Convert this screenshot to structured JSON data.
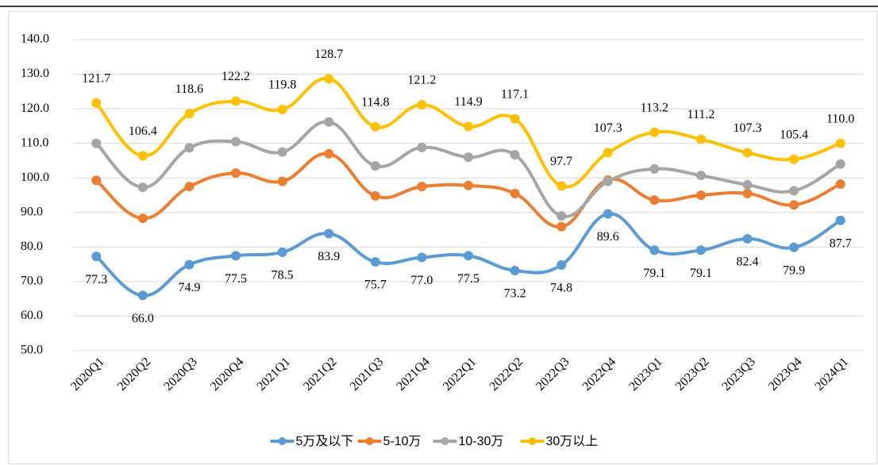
{
  "chart_data": {
    "type": "line",
    "categories": [
      "2020Q1",
      "2020Q2",
      "2020Q3",
      "2020Q4",
      "2021Q1",
      "2021Q2",
      "2021Q3",
      "2021Q4",
      "2022Q1",
      "2022Q2",
      "2022Q3",
      "2022Q4",
      "2023Q1",
      "2023Q2",
      "2023Q3",
      "2023Q4",
      "2024Q1"
    ],
    "series": [
      {
        "name": "5万及以下",
        "color": "#5b9bd5",
        "values": [
          77.3,
          66.0,
          74.9,
          77.5,
          78.5,
          83.9,
          75.7,
          77.0,
          77.5,
          73.2,
          74.8,
          89.6,
          79.1,
          79.1,
          82.4,
          79.9,
          87.7
        ],
        "value_labels": [
          "77.3",
          "66.0",
          "74.9",
          "77.5",
          "78.5",
          "83.9",
          "75.7",
          "77.0",
          "77.5",
          "73.2",
          "74.8",
          "89.6",
          "79.1",
          "79.1",
          "82.4",
          "79.9",
          "87.7"
        ]
      },
      {
        "name": "5-10万",
        "color": "#ed7d31",
        "values": [
          99.3,
          88.3,
          97.5,
          101.4,
          99.0,
          107.0,
          94.8,
          97.5,
          97.8,
          95.5,
          85.9,
          99.4,
          93.6,
          95.0,
          95.5,
          92.2,
          98.2
        ]
      },
      {
        "name": "10-30万",
        "color": "#a5a5a5",
        "values": [
          110.0,
          97.3,
          108.7,
          110.5,
          107.5,
          116.2,
          103.5,
          108.8,
          106.0,
          106.7,
          89.0,
          99.0,
          102.6,
          100.7,
          98.0,
          96.3,
          104.0
        ]
      },
      {
        "name": "30万以上",
        "color": "#ffc000",
        "values": [
          121.7,
          106.4,
          118.6,
          122.2,
          119.8,
          128.7,
          114.8,
          121.2,
          114.9,
          117.1,
          97.7,
          107.3,
          113.2,
          111.2,
          107.3,
          105.4,
          110.0
        ],
        "value_labels": [
          "121.7",
          "106.4",
          "118.6",
          "122.2",
          "119.8",
          "128.7",
          "114.8",
          "121.2",
          "114.9",
          "117.1",
          "97.7",
          "107.3",
          "113.2",
          "111.2",
          "107.3",
          "105.4",
          "110.0"
        ]
      }
    ],
    "ylim": [
      50,
      140
    ],
    "yticks": [
      {
        "value": 50,
        "label": "50.0"
      },
      {
        "value": 60,
        "label": "60.0"
      },
      {
        "value": 70,
        "label": "70.0"
      },
      {
        "value": 80,
        "label": "80.0"
      },
      {
        "value": 90,
        "label": "90.0"
      },
      {
        "value": 100,
        "label": "100.0"
      },
      {
        "value": 110,
        "label": "110.0"
      },
      {
        "value": 120,
        "label": "120.0"
      },
      {
        "value": 130,
        "label": "130.0"
      },
      {
        "value": 140,
        "label": "140.0"
      }
    ],
    "grid": true,
    "legend": "bottom"
  }
}
